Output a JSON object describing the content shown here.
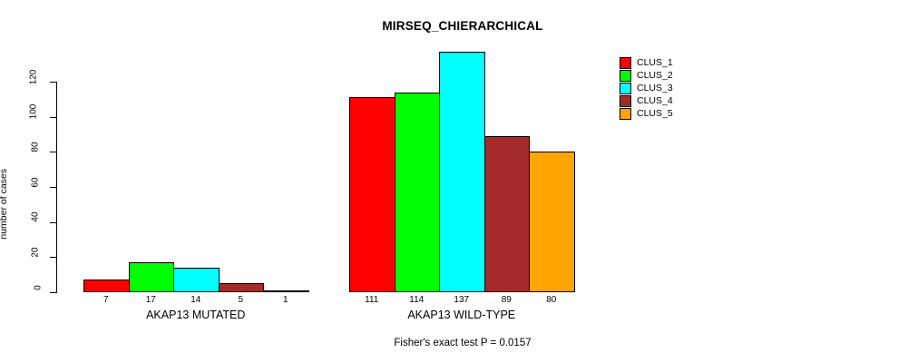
{
  "chart_data": {
    "type": "bar",
    "title": "MIRSEQ_CHIERARCHICAL",
    "ylabel": "number of cases",
    "caption": "Fisher's exact test P = 0.0157",
    "ylim": [
      0,
      140
    ],
    "yticks": [
      0,
      20,
      40,
      60,
      80,
      100,
      120
    ],
    "grid": false,
    "legend_position": "top-right",
    "categories": [
      "AKAP13 MUTATED",
      "AKAP13 WILD-TYPE"
    ],
    "series": [
      {
        "name": "CLUS_1",
        "color": "#ff0000",
        "values": [
          7,
          111
        ]
      },
      {
        "name": "CLUS_2",
        "color": "#00ff00",
        "values": [
          17,
          114
        ]
      },
      {
        "name": "CLUS_3",
        "color": "#00ffff",
        "values": [
          14,
          137
        ]
      },
      {
        "name": "CLUS_4",
        "color": "#a52a2a",
        "values": [
          5,
          89
        ]
      },
      {
        "name": "CLUS_5",
        "color": "#ffa500",
        "values": [
          1,
          80
        ]
      }
    ],
    "bar_value_labels": {
      "AKAP13 MUTATED": [
        7,
        17,
        14,
        5,
        1
      ],
      "AKAP13 WILD-TYPE": [
        111,
        114,
        137,
        89,
        80
      ]
    }
  },
  "colors": {
    "background": "#ffffff",
    "axis": "#000000",
    "text": "#000000"
  }
}
